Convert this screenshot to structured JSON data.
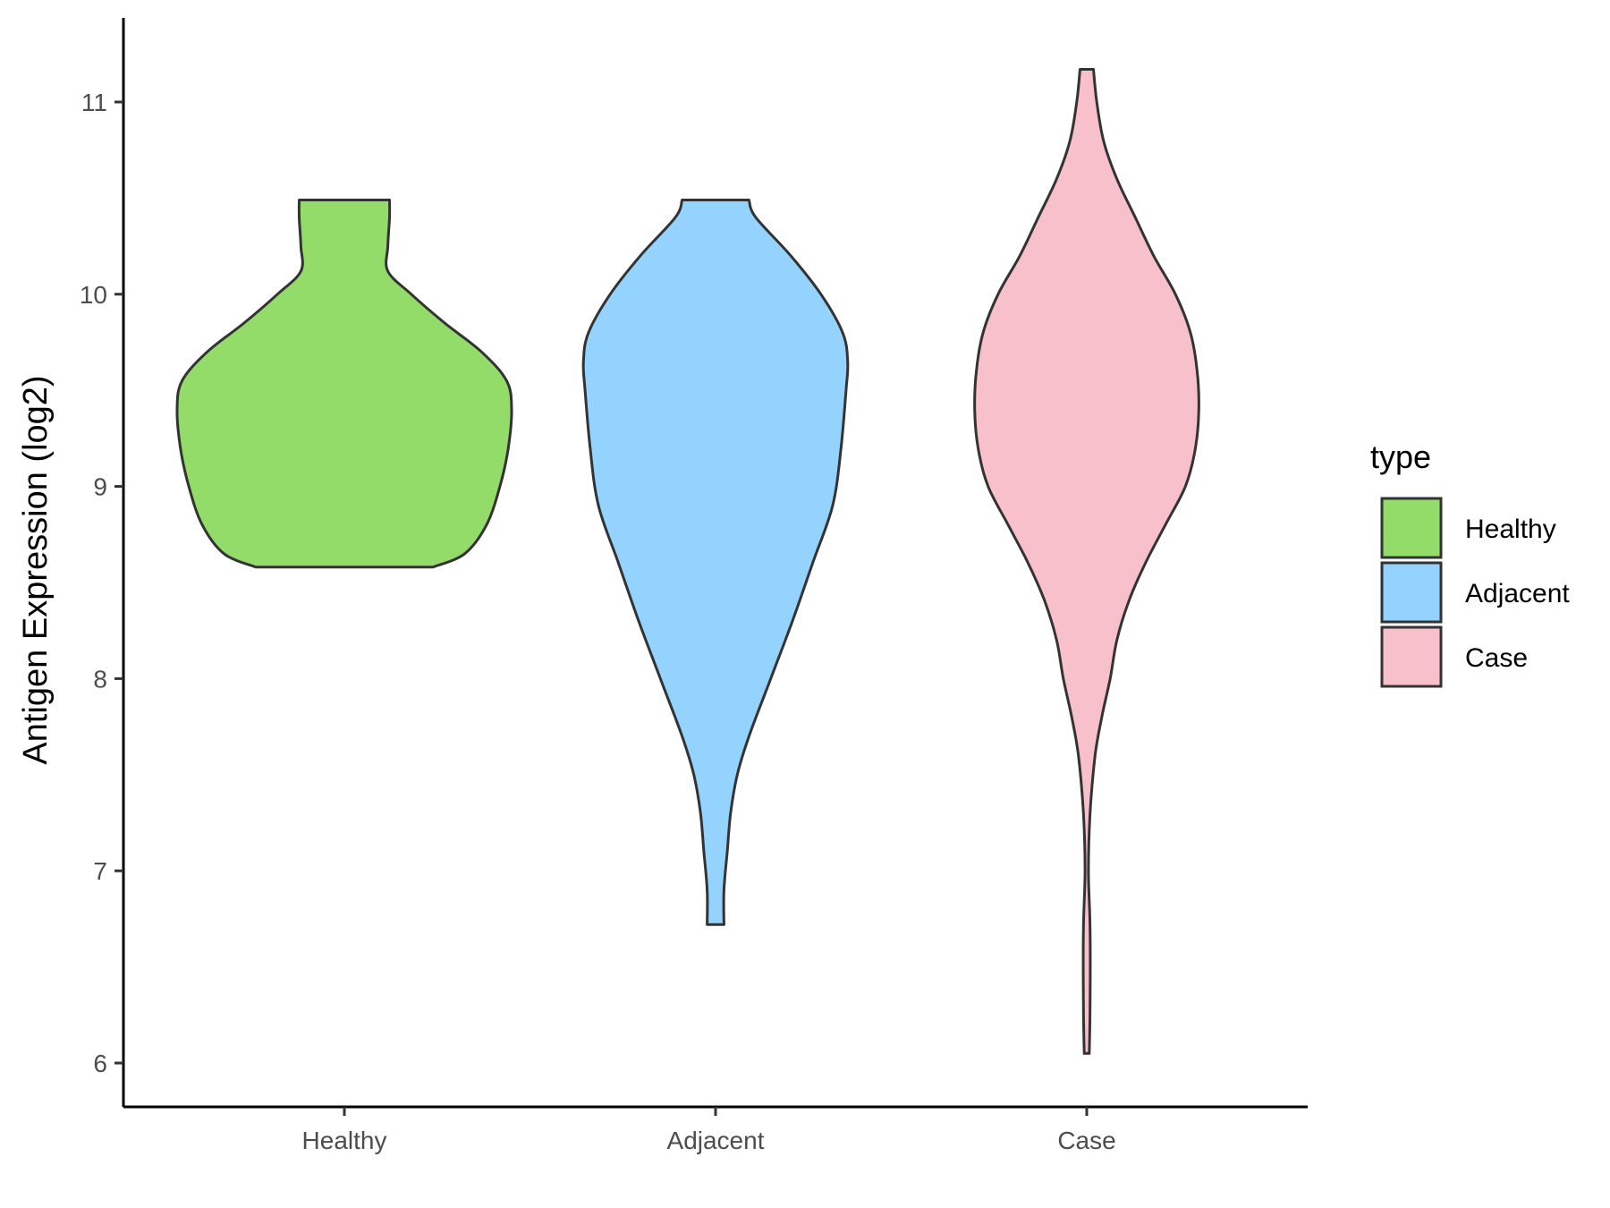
{
  "chart_data": {
    "type": "violin",
    "ylabel": "Antigen Expression (log2)",
    "xlabel": "",
    "ylim": [
      5.8,
      11.45
    ],
    "yticks": [
      6,
      7,
      8,
      9,
      10,
      11
    ],
    "categories": [
      "Healthy",
      "Adjacent",
      "Case"
    ],
    "legend": {
      "title": "type",
      "position": "right",
      "entries": [
        {
          "label": "Healthy",
          "color": "#93dc6a"
        },
        {
          "label": "Adjacent",
          "color": "#93d3fe"
        },
        {
          "label": "Case",
          "color": "#f7c0cb"
        }
      ]
    },
    "grid": false,
    "outline_color": "#333333",
    "series": [
      {
        "category": "Healthy",
        "color": "#93dc6a",
        "min": 8.58,
        "max": 10.49,
        "density_profile": [
          [
            8.58,
            0.53
          ],
          [
            8.65,
            0.72
          ],
          [
            8.8,
            0.85
          ],
          [
            9.0,
            0.93
          ],
          [
            9.2,
            0.98
          ],
          [
            9.4,
            1.0
          ],
          [
            9.55,
            0.97
          ],
          [
            9.7,
            0.82
          ],
          [
            9.85,
            0.6
          ],
          [
            10.0,
            0.4
          ],
          [
            10.12,
            0.26
          ],
          [
            10.25,
            0.26
          ],
          [
            10.4,
            0.27
          ],
          [
            10.49,
            0.27
          ]
        ]
      },
      {
        "category": "Adjacent",
        "color": "#93d3fe",
        "min": 6.72,
        "max": 10.49,
        "density_profile": [
          [
            6.72,
            0.05
          ],
          [
            6.9,
            0.05
          ],
          [
            7.1,
            0.07
          ],
          [
            7.3,
            0.09
          ],
          [
            7.5,
            0.13
          ],
          [
            7.7,
            0.2
          ],
          [
            8.0,
            0.33
          ],
          [
            8.3,
            0.46
          ],
          [
            8.6,
            0.58
          ],
          [
            8.9,
            0.7
          ],
          [
            9.2,
            0.75
          ],
          [
            9.5,
            0.78
          ],
          [
            9.65,
            0.79
          ],
          [
            9.8,
            0.76
          ],
          [
            10.0,
            0.63
          ],
          [
            10.2,
            0.45
          ],
          [
            10.4,
            0.24
          ],
          [
            10.49,
            0.2
          ]
        ]
      },
      {
        "category": "Case",
        "color": "#f7c0cb",
        "min": 6.05,
        "max": 11.17,
        "density_profile": [
          [
            6.05,
            0.015
          ],
          [
            6.3,
            0.02
          ],
          [
            6.7,
            0.02
          ],
          [
            7.0,
            0.01
          ],
          [
            7.3,
            0.02
          ],
          [
            7.6,
            0.05
          ],
          [
            7.8,
            0.09
          ],
          [
            8.0,
            0.14
          ],
          [
            8.2,
            0.18
          ],
          [
            8.4,
            0.25
          ],
          [
            8.6,
            0.35
          ],
          [
            8.8,
            0.47
          ],
          [
            9.0,
            0.59
          ],
          [
            9.2,
            0.65
          ],
          [
            9.4,
            0.67
          ],
          [
            9.6,
            0.66
          ],
          [
            9.8,
            0.62
          ],
          [
            10.0,
            0.53
          ],
          [
            10.2,
            0.4
          ],
          [
            10.4,
            0.29
          ],
          [
            10.6,
            0.18
          ],
          [
            10.8,
            0.1
          ],
          [
            11.0,
            0.06
          ],
          [
            11.17,
            0.04
          ]
        ]
      }
    ]
  }
}
